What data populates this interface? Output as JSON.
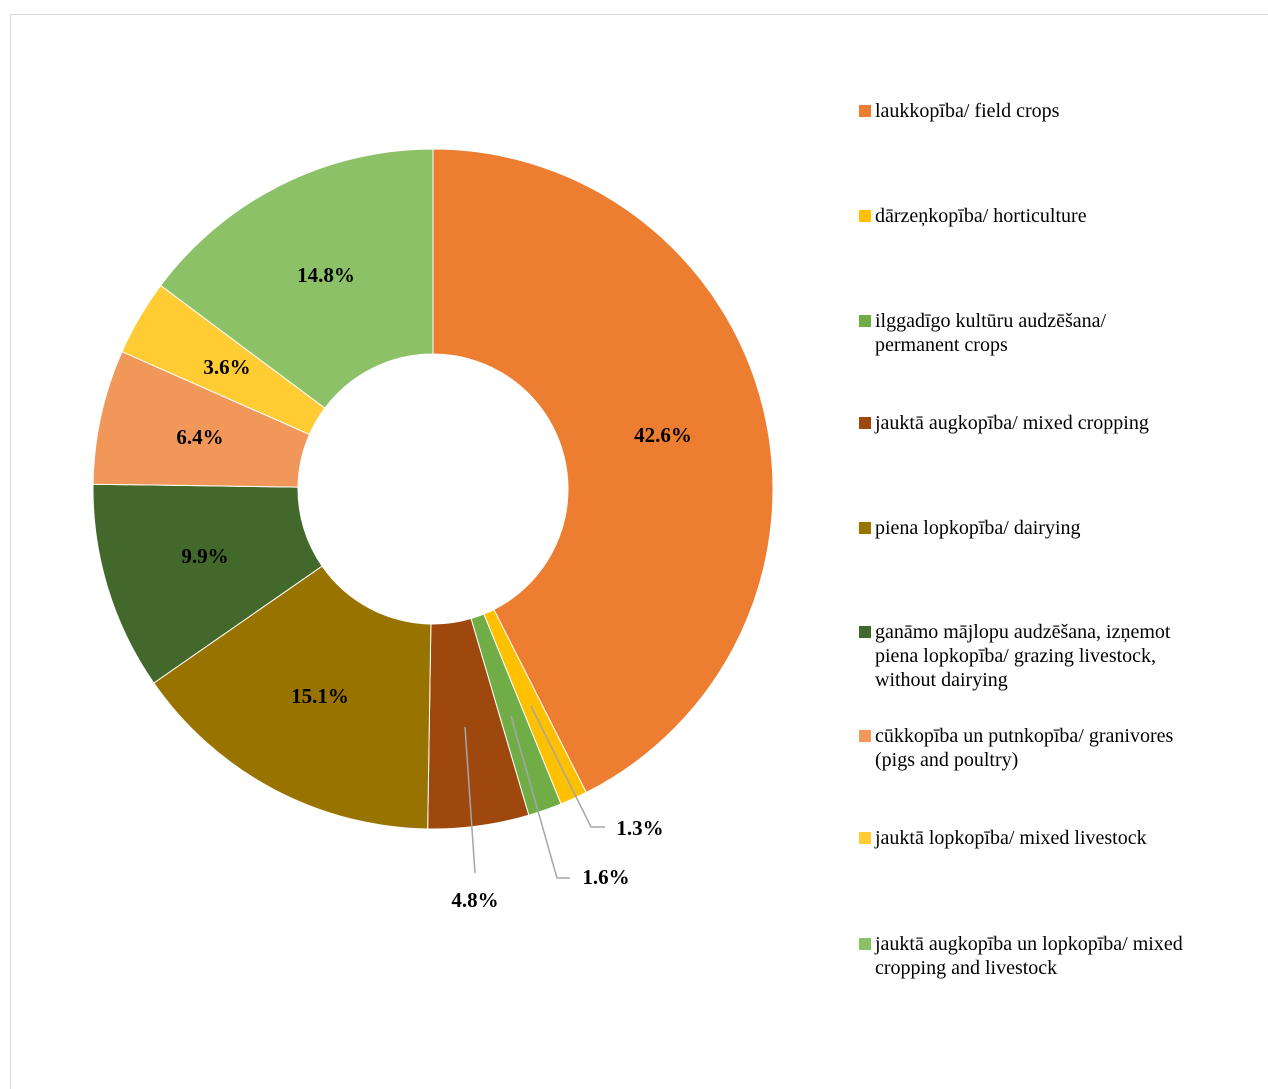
{
  "chart_data": {
    "type": "pie",
    "variant": "donut",
    "title": "",
    "series": [
      {
        "name": "",
        "values": [
          42.6,
          1.3,
          1.6,
          4.8,
          15.1,
          9.9,
          6.4,
          3.6,
          14.8
        ]
      }
    ],
    "categories": [
      "laukkopība/ field crops",
      "dārzeņkopība/ horticulture",
      "ilggadīgo kultūru audzēšana/ permanent crops",
      "jauktā augkopība/ mixed cropping",
      "piena lopkopība/ dairying",
      "ganāmo mājlopu audzēšana, izņemot piena lopkopība/ grazing livestock, without dairying",
      "cūkkopība un putnkopība/ granivores (pigs and poultry)",
      "jauktā lopkopība/ mixed livestock",
      "jauktā augkopība un lopkopība/ mixed cropping and livestock"
    ],
    "data_labels": [
      "42.6%",
      "1.3%",
      "1.6%",
      "4.8%",
      "15.1%",
      "9.9%",
      "6.4%",
      "3.6%",
      "14.8%"
    ],
    "colors": [
      "#ED7D31",
      "#FFC000",
      "#70AD47",
      "#9E480E",
      "#997300",
      "#43682B",
      "#F1975A",
      "#FFCD33",
      "#8CC168"
    ],
    "legend_position": "right",
    "legend": [
      {
        "label_lines": [
          "laukkopība/ field crops"
        ],
        "color": "#ED7D31"
      },
      {
        "label_lines": [
          "dārzeņkopība/ horticulture"
        ],
        "color": "#FFC000"
      },
      {
        "label_lines": [
          "ilggadīgo kultūru audzēšana/",
          "permanent crops"
        ],
        "color": "#70AD47"
      },
      {
        "label_lines": [
          "jauktā augkopība/ mixed cropping"
        ],
        "color": "#9E480E"
      },
      {
        "label_lines": [
          "piena lopkopība/ dairying"
        ],
        "color": "#997300"
      },
      {
        "label_lines": [
          "ganāmo mājlopu audzēšana, izņemot",
          "piena lopkopība/ grazing livestock,",
          "without dairying"
        ],
        "color": "#43682B"
      },
      {
        "label_lines": [
          "cūkkopība un putnkopība/ granivores",
          "(pigs and poultry)"
        ],
        "color": "#F1975A"
      },
      {
        "label_lines": [
          "jauktā lopkopība/ mixed livestock"
        ],
        "color": "#FFCD33"
      },
      {
        "label_lines": [
          "jauktā augkopība un lopkopība/ mixed",
          "cropping and livestock"
        ],
        "color": "#8CC168"
      }
    ]
  }
}
